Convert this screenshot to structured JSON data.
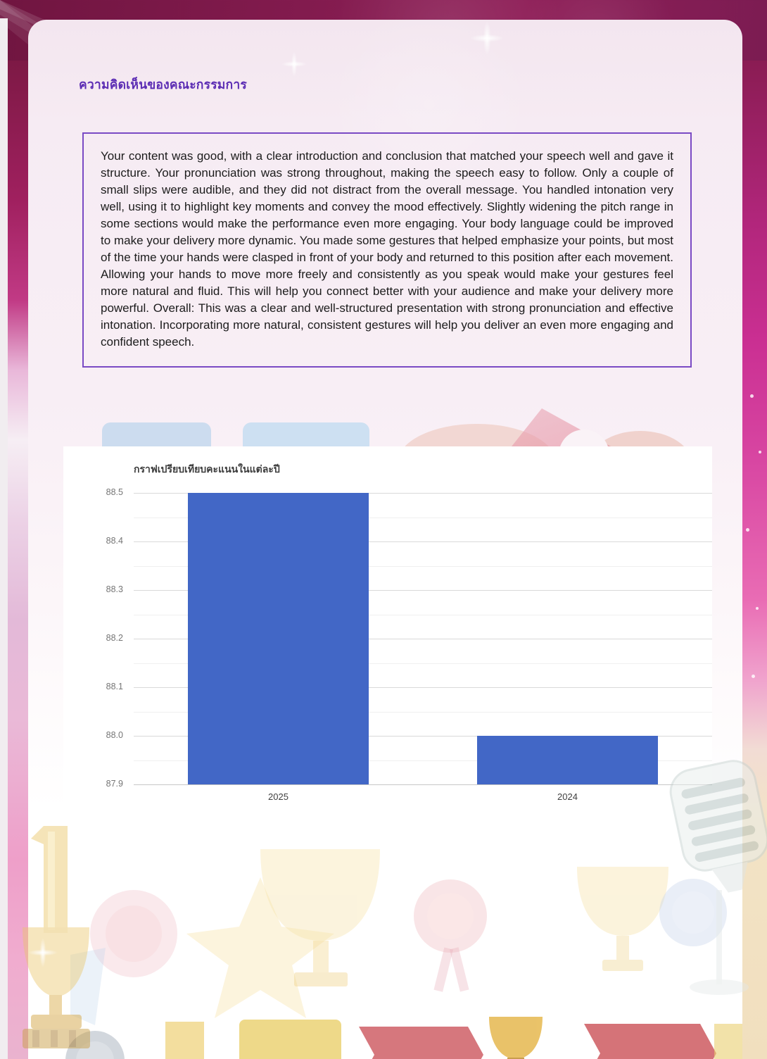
{
  "page": {
    "heading": "ความคิดเห็นของคณะกรรมการ",
    "feedback_text": "Your content was good, with a clear introduction and conclusion that matched your speech well and gave it structure. Your pronunciation was strong throughout, making the speech easy to follow. Only a couple of small slips were audible, and they did not distract from the overall message. You handled intonation very well, using it to highlight key moments and convey the mood effectively. Slightly widening the pitch range in some sections would make the performance even more engaging. Your body language could be improved to make your delivery more dynamic. You made some gestures that helped emphasize your points, but most of the time your hands were clasped in front of your body and returned to this position after each movement. Allowing your hands to move more freely and consistently as you speak would make your gestures feel more natural and fluid. This will help you connect better with your audience and make your delivery more powerful. Overall: This was a clear and well-structured presentation with strong pronunciation and effective intonation. Incorporating more natural, consistent gestures will help you deliver an even more engaging and confident speech."
  },
  "chart_data": {
    "type": "bar",
    "title": "กราฟเปรียบเทียบคะแนนในแต่ละปี",
    "categories": [
      "2025",
      "2024"
    ],
    "values": [
      88.5,
      88.0
    ],
    "ylim": [
      87.9,
      88.5
    ],
    "y_ticks": [
      "88.5",
      "88.4",
      "88.3",
      "88.2",
      "88.1",
      "88.0",
      "87.9"
    ],
    "tick_step": 0.1,
    "minor_gridlines": true,
    "bar_color": "#4267c6",
    "grid": true,
    "legend_position": "none",
    "xlabel": "",
    "ylabel": ""
  },
  "theme": {
    "heading_color": "#5c2db4",
    "box_border_color": "#7a4ac4",
    "text_color": "#1c1c1c",
    "chart_bg": "#ffffff",
    "bg_top_maroon": "#701540",
    "bg_magenta": "#ca2f92",
    "card_pink": "#f6ebf3"
  }
}
